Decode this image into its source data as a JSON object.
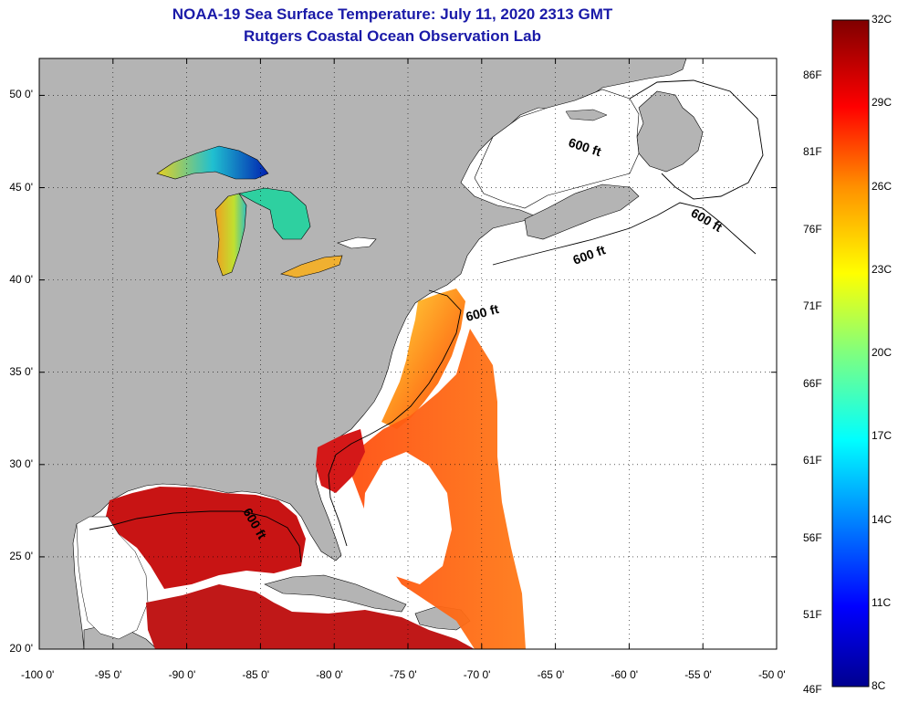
{
  "title_line1": "NOAA-19 Sea Surface Temperature:  July 11, 2020 2313 GMT",
  "title_line2": "Rutgers Coastal Ocean Observation Lab",
  "map": {
    "lon_range": [
      -100,
      -50
    ],
    "lat_range": [
      20,
      52
    ],
    "lat_ticks": [
      "50 0'",
      "45 0'",
      "40 0'",
      "35 0'",
      "30 0'",
      "25 0'",
      "20 0'"
    ],
    "lon_ticks": [
      "-100 0'",
      "-95 0'",
      "-90 0'",
      "-85 0'",
      "-80 0'",
      "-75 0'",
      "-70 0'",
      "-65 0'",
      "-60 0'",
      "-55 0'",
      "-50 0'"
    ],
    "contour_labels": [
      "600 ft",
      "600 ft",
      "600 ft",
      "600 ft",
      "600 ft"
    ],
    "colors": {
      "land": "#b4b4b4",
      "ocean_nodata": "#ffffff",
      "title": "#1a1aa8"
    }
  },
  "colorbar": {
    "min_c": 8,
    "max_c": 32,
    "celsius_labels": [
      "32C",
      "29C",
      "26C",
      "23C",
      "20C",
      "17C",
      "14C",
      "11C",
      "8C"
    ],
    "fahrenheit_labels": [
      "86F",
      "81F",
      "76F",
      "71F",
      "66F",
      "61F",
      "56F",
      "51F",
      "46F"
    ]
  }
}
